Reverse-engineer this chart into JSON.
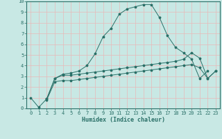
{
  "title": "",
  "xlabel": "Humidex (Indice chaleur)",
  "xlim": [
    -0.5,
    23.5
  ],
  "ylim": [
    0,
    10
  ],
  "xticks": [
    0,
    1,
    2,
    3,
    4,
    5,
    6,
    7,
    8,
    9,
    10,
    11,
    12,
    13,
    14,
    15,
    16,
    17,
    18,
    19,
    20,
    21,
    22,
    23
  ],
  "yticks": [
    0,
    1,
    2,
    3,
    4,
    5,
    6,
    7,
    8,
    9,
    10
  ],
  "bg_color": "#c8e8e4",
  "grid_color": "#e8b8b8",
  "line_color": "#2a7068",
  "line1_x": [
    0,
    1,
    2,
    3,
    4,
    5,
    6,
    7,
    8,
    9,
    10,
    11,
    12,
    13,
    14,
    15,
    16,
    17,
    18,
    19,
    20,
    21,
    22,
    23
  ],
  "line1_y": [
    1.0,
    0.1,
    0.9,
    2.8,
    3.2,
    3.3,
    3.5,
    4.0,
    5.1,
    6.7,
    7.5,
    8.8,
    9.3,
    9.5,
    9.7,
    9.7,
    8.5,
    6.8,
    5.7,
    5.2,
    4.6,
    2.8,
    3.5,
    null
  ],
  "line2_x": [
    2,
    3,
    4,
    5,
    6,
    7,
    8,
    9,
    10,
    11,
    12,
    13,
    14,
    15,
    16,
    17,
    18,
    19,
    20,
    21,
    22,
    23
  ],
  "line2_y": [
    0.9,
    2.8,
    3.1,
    3.1,
    3.2,
    3.3,
    3.4,
    3.5,
    3.6,
    3.7,
    3.8,
    3.9,
    4.0,
    4.1,
    4.2,
    4.3,
    4.4,
    4.6,
    5.2,
    4.7,
    2.8,
    3.5
  ],
  "line3_x": [
    2,
    3,
    4,
    5,
    6,
    7,
    8,
    9,
    10,
    11,
    12,
    13,
    14,
    15,
    16,
    17,
    18,
    19,
    20,
    21,
    22,
    23
  ],
  "line3_y": [
    0.8,
    2.5,
    2.6,
    2.6,
    2.7,
    2.8,
    2.9,
    3.0,
    3.1,
    3.2,
    3.3,
    3.4,
    3.5,
    3.6,
    3.7,
    3.8,
    3.9,
    4.0,
    4.1,
    3.8,
    2.8,
    3.5
  ],
  "marker": "*",
  "markersize": 2.5,
  "linewidth": 0.7,
  "tick_fontsize": 5.0,
  "label_fontsize": 6.0
}
